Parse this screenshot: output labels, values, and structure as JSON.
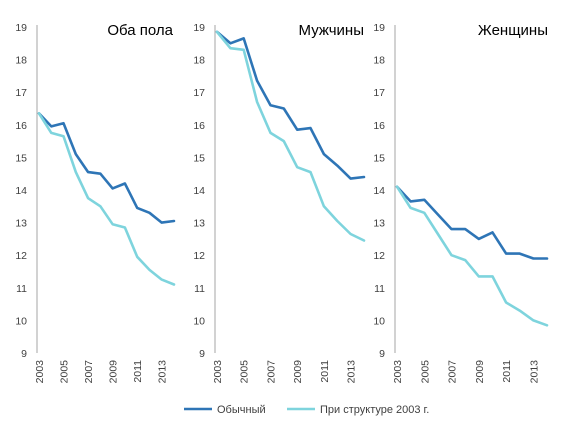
{
  "chart_data": {
    "type": "line",
    "colors": {
      "series0": "#2e75b6",
      "series1": "#7ed4dd",
      "axis": "#a6a6a6"
    },
    "legend": {
      "position": "bottom",
      "items": [
        "Обычный",
        "При структуре 2003 г."
      ]
    },
    "panels": [
      {
        "title": "Оба пола",
        "x": [
          2003,
          2004,
          2005,
          2006,
          2007,
          2008,
          2009,
          2010,
          2011,
          2012,
          2013,
          2014
        ],
        "x_tick_labels": [
          "2003",
          "2005",
          "2007",
          "2009",
          "2011",
          "2013"
        ],
        "ylim": [
          9,
          19
        ],
        "y_ticks": [
          9,
          10,
          11,
          12,
          13,
          14,
          15,
          16,
          17,
          18,
          19
        ],
        "series": [
          {
            "name": "Обычный",
            "values": [
              16.35,
              15.95,
              16.05,
              15.1,
              14.55,
              14.5,
              14.05,
              14.2,
              13.45,
              13.3,
              13.0,
              13.05
            ]
          },
          {
            "name": "При структуре 2003 г.",
            "values": [
              16.35,
              15.75,
              15.65,
              14.55,
              13.75,
              13.5,
              12.95,
              12.85,
              11.95,
              11.55,
              11.25,
              11.1
            ]
          }
        ]
      },
      {
        "title": "Мужчины",
        "x": [
          2003,
          2004,
          2005,
          2006,
          2007,
          2008,
          2009,
          2010,
          2011,
          2012,
          2013,
          2014
        ],
        "x_tick_labels": [
          "2003",
          "2005",
          "2007",
          "2009",
          "2011",
          "2013"
        ],
        "ylim": [
          9,
          19
        ],
        "y_ticks": [
          9,
          10,
          11,
          12,
          13,
          14,
          15,
          16,
          17,
          18,
          19
        ],
        "series": [
          {
            "name": "Обычный",
            "values": [
              18.85,
              18.5,
              18.65,
              17.35,
              16.6,
              16.5,
              15.85,
              15.9,
              15.1,
              14.75,
              14.35,
              14.4
            ]
          },
          {
            "name": "При структуре 2003 г.",
            "values": [
              18.85,
              18.35,
              18.3,
              16.7,
              15.75,
              15.5,
              14.7,
              14.55,
              13.5,
              13.05,
              12.65,
              12.45
            ]
          }
        ]
      },
      {
        "title": "Женщины",
        "x": [
          2003,
          2004,
          2005,
          2006,
          2007,
          2008,
          2009,
          2010,
          2011,
          2012,
          2013,
          2014
        ],
        "x_tick_labels": [
          "2003",
          "2005",
          "2007",
          "2009",
          "2011",
          "2013"
        ],
        "ylim": [
          9,
          19
        ],
        "y_ticks": [
          9,
          10,
          11,
          12,
          13,
          14,
          15,
          16,
          17,
          18,
          19
        ],
        "series": [
          {
            "name": "Обычный",
            "values": [
              14.1,
              13.65,
              13.7,
              13.25,
              12.8,
              12.8,
              12.5,
              12.7,
              12.05,
              12.05,
              11.9,
              11.9
            ]
          },
          {
            "name": "При структуре 2003 г.",
            "values": [
              14.1,
              13.45,
              13.3,
              12.65,
              12.0,
              11.85,
              11.35,
              11.35,
              10.55,
              10.3,
              10.0,
              9.85
            ]
          }
        ]
      }
    ]
  }
}
